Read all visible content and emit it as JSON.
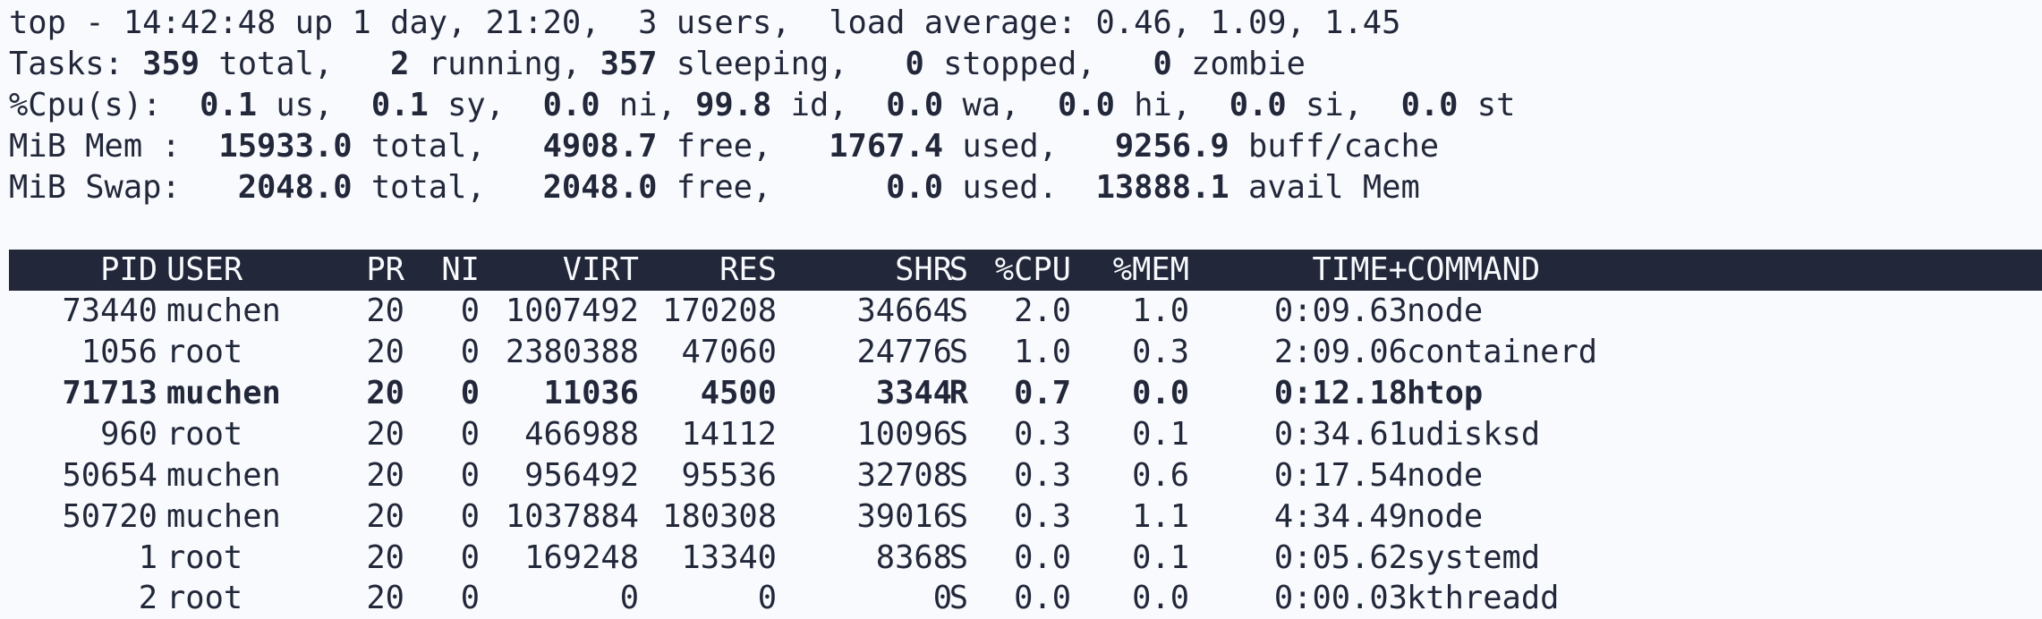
{
  "summary": {
    "uptime": "top - 14:42:48 up 1 day, 21:20,  3 users,  load average: 0.46, 1.09, 1.45",
    "tasks": {
      "label": "Tasks:",
      "total": "359",
      "total_label": "total,",
      "running": "2",
      "running_label": "running,",
      "sleeping": "357",
      "sleeping_label": "sleeping,",
      "stopped": "0",
      "stopped_label": "stopped,",
      "zombie": "0",
      "zombie_label": "zombie"
    },
    "cpu": {
      "label": "%Cpu(s):",
      "us": "0.1",
      "us_label": "us,",
      "sy": "0.1",
      "sy_label": "sy,",
      "ni": "0.0",
      "ni_label": "ni,",
      "id": "99.8",
      "id_label": "id,",
      "wa": "0.0",
      "wa_label": "wa,",
      "hi": "0.0",
      "hi_label": "hi,",
      "si": "0.0",
      "si_label": "si,",
      "st": "0.0",
      "st_label": "st"
    },
    "mem": {
      "label": "MiB Mem :",
      "total": "15933.0",
      "total_label": "total,",
      "free": "4908.7",
      "free_label": "free,",
      "used": "1767.4",
      "used_label": "used,",
      "buff": "9256.9",
      "buff_label": "buff/cache"
    },
    "swap": {
      "label": "MiB Swap:",
      "total": "2048.0",
      "total_label": "total,",
      "free": "2048.0",
      "free_label": "free,",
      "used": "0.0",
      "used_label": "used.",
      "avail": "13888.1",
      "avail_label": "avail Mem"
    }
  },
  "table": {
    "headers": {
      "pid": "PID",
      "user": "USER",
      "pr": "PR",
      "ni": "NI",
      "virt": "VIRT",
      "res": "RES",
      "shr": "SHR",
      "s": "S",
      "cpu": "%CPU",
      "mem": "%MEM",
      "time": "TIME+",
      "command": "COMMAND"
    },
    "rows": [
      {
        "pid": "73440",
        "user": "muchen",
        "pr": "20",
        "ni": "0",
        "virt": "1007492",
        "res": "170208",
        "shr": "34664",
        "s": "S",
        "cpu": "2.0",
        "mem": "1.0",
        "time": "0:09.63",
        "command": "node"
      },
      {
        "pid": "1056",
        "user": "root",
        "pr": "20",
        "ni": "0",
        "virt": "2380388",
        "res": "47060",
        "shr": "24776",
        "s": "S",
        "cpu": "1.0",
        "mem": "0.3",
        "time": "2:09.06",
        "command": "containerd"
      },
      {
        "pid": "71713",
        "user": "muchen",
        "pr": "20",
        "ni": "0",
        "virt": "11036",
        "res": "4500",
        "shr": "3344",
        "s": "R",
        "cpu": "0.7",
        "mem": "0.0",
        "time": "0:12.18",
        "command": "htop"
      },
      {
        "pid": "960",
        "user": "root",
        "pr": "20",
        "ni": "0",
        "virt": "466988",
        "res": "14112",
        "shr": "10096",
        "s": "S",
        "cpu": "0.3",
        "mem": "0.1",
        "time": "0:34.61",
        "command": "udisksd"
      },
      {
        "pid": "50654",
        "user": "muchen",
        "pr": "20",
        "ni": "0",
        "virt": "956492",
        "res": "95536",
        "shr": "32708",
        "s": "S",
        "cpu": "0.3",
        "mem": "0.6",
        "time": "0:17.54",
        "command": "node"
      },
      {
        "pid": "50720",
        "user": "muchen",
        "pr": "20",
        "ni": "0",
        "virt": "1037884",
        "res": "180308",
        "shr": "39016",
        "s": "S",
        "cpu": "0.3",
        "mem": "1.1",
        "time": "4:34.49",
        "command": "node"
      },
      {
        "pid": "1",
        "user": "root",
        "pr": "20",
        "ni": "0",
        "virt": "169248",
        "res": "13340",
        "shr": "8368",
        "s": "S",
        "cpu": "0.0",
        "mem": "0.1",
        "time": "0:05.62",
        "command": "systemd"
      },
      {
        "pid": "2",
        "user": "root",
        "pr": "20",
        "ni": "0",
        "virt": "0",
        "res": "0",
        "shr": "0",
        "s": "S",
        "cpu": "0.0",
        "mem": "0.0",
        "time": "0:00.03",
        "command": "kthreadd"
      }
    ]
  },
  "colors": {
    "background": "#f8fafd",
    "foreground": "#22283a",
    "header_bg": "#22283a",
    "header_fg": "#f8fafd"
  }
}
